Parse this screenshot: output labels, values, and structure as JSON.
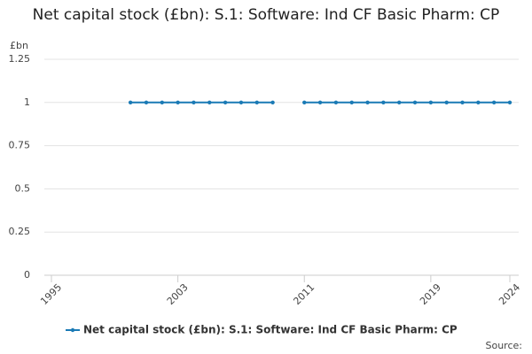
{
  "chart_data": {
    "type": "line",
    "title": "Net capital stock (£bn): S.1: Software: Ind CF Basic Pharm: CP",
    "y_label": "£bn",
    "source": "Source:",
    "x": [
      1995,
      1996,
      1997,
      1998,
      1999,
      2000,
      2001,
      2002,
      2003,
      2004,
      2005,
      2006,
      2007,
      2008,
      2009,
      2010,
      2011,
      2012,
      2013,
      2014,
      2015,
      2016,
      2017,
      2018,
      2019,
      2020,
      2021,
      2022,
      2023,
      2024
    ],
    "series": [
      {
        "name": "Net capital stock (£bn): S.1: Software: Ind CF Basic Pharm: CP",
        "color": "#1a7ab5",
        "values": [
          null,
          null,
          null,
          null,
          null,
          1,
          1,
          1,
          1,
          1,
          1,
          1,
          1,
          1,
          1,
          null,
          1,
          1,
          1,
          1,
          1,
          1,
          1,
          1,
          1,
          1,
          1,
          1,
          1,
          1
        ]
      }
    ],
    "xlim": [
      1995,
      2024
    ],
    "xticks": [
      1995,
      2003,
      2011,
      2019,
      2024
    ],
    "ylim": [
      0,
      1.25
    ],
    "yticks": [
      0,
      0.25,
      0.5,
      0.75,
      1,
      1.25
    ],
    "grid": true,
    "legend": "bottom"
  }
}
